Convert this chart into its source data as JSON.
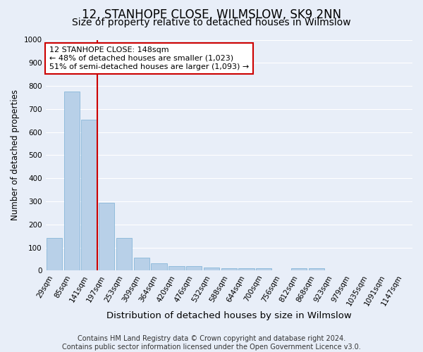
{
  "title": "12, STANHOPE CLOSE, WILMSLOW, SK9 2NN",
  "subtitle": "Size of property relative to detached houses in Wilmslow",
  "xlabel": "Distribution of detached houses by size in Wilmslow",
  "ylabel": "Number of detached properties",
  "categories": [
    "29sqm",
    "85sqm",
    "141sqm",
    "197sqm",
    "253sqm",
    "309sqm",
    "364sqm",
    "420sqm",
    "476sqm",
    "532sqm",
    "588sqm",
    "644sqm",
    "700sqm",
    "756sqm",
    "812sqm",
    "868sqm",
    "923sqm",
    "979sqm",
    "1035sqm",
    "1091sqm",
    "1147sqm"
  ],
  "values": [
    140,
    775,
    655,
    295,
    140,
    57,
    33,
    20,
    20,
    13,
    10,
    10,
    10,
    0,
    10,
    10,
    0,
    0,
    0,
    0,
    0
  ],
  "bar_color": "#b8d0e8",
  "bar_edge_color": "#7aafd4",
  "highlight_index": 2,
  "highlight_color": "#cc0000",
  "annotation_title": "12 STANHOPE CLOSE: 148sqm",
  "annotation_line1": "← 48% of detached houses are smaller (1,023)",
  "annotation_line2": "51% of semi-detached houses are larger (1,093) →",
  "ylim": [
    0,
    1000
  ],
  "yticks": [
    0,
    100,
    200,
    300,
    400,
    500,
    600,
    700,
    800,
    900,
    1000
  ],
  "footer_line1": "Contains HM Land Registry data © Crown copyright and database right 2024.",
  "footer_line2": "Contains public sector information licensed under the Open Government Licence v3.0.",
  "background_color": "#e8eef8",
  "plot_bg_color": "#e8eef8",
  "grid_color": "#ffffff",
  "title_fontsize": 12,
  "subtitle_fontsize": 10,
  "xlabel_fontsize": 9.5,
  "ylabel_fontsize": 8.5,
  "tick_fontsize": 7.5,
  "footer_fontsize": 7,
  "annotation_fontsize": 8
}
